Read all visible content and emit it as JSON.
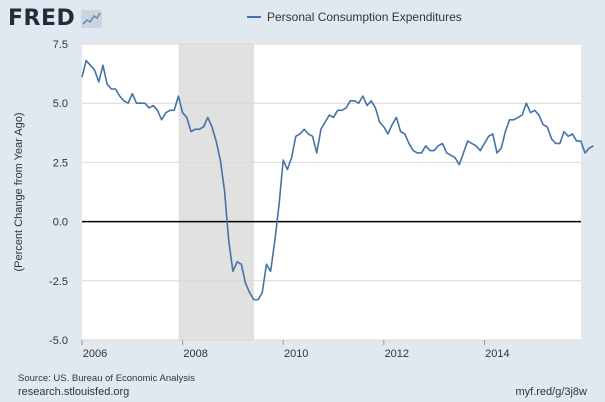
{
  "header": {
    "logo_text": "FRED",
    "logo_icon": "fred-chart-icon"
  },
  "chart_data": {
    "type": "line",
    "title": "",
    "legend": [
      "Personal Consumption Expenditures"
    ],
    "legend_position": "top-center",
    "ylabel": "(Percent Change from Year Ago)",
    "xlabel": "",
    "ylim": [
      -5.0,
      7.5
    ],
    "xlim": [
      2006.0,
      2015.92
    ],
    "yticks": [
      "-5.0",
      "-2.5",
      "0.0",
      "2.5",
      "5.0",
      "7.5"
    ],
    "ytick_values": [
      -5.0,
      -2.5,
      0.0,
      2.5,
      5.0,
      7.5
    ],
    "xticks": [
      "2006",
      "2008",
      "2010",
      "2012",
      "2014"
    ],
    "xtick_values": [
      2006,
      2008,
      2010,
      2012,
      2014
    ],
    "grid": true,
    "zero_line": true,
    "recession_shading": {
      "start": 2007.92,
      "end": 2009.42
    },
    "series": [
      {
        "name": "Personal Consumption Expenditures",
        "color": "#4572a7",
        "values": [
          6.1,
          6.8,
          6.6,
          6.4,
          5.9,
          6.6,
          5.8,
          5.6,
          5.6,
          5.3,
          5.1,
          5.0,
          5.4,
          5.0,
          5.0,
          5.0,
          4.8,
          4.9,
          4.7,
          4.3,
          4.6,
          4.7,
          4.7,
          5.3,
          4.6,
          4.4,
          3.8,
          3.9,
          3.9,
          4.0,
          4.4,
          4.0,
          3.4,
          2.6,
          1.3,
          -0.8,
          -2.1,
          -1.7,
          -1.8,
          -2.6,
          -3.0,
          -3.3,
          -3.3,
          -3.0,
          -1.8,
          -2.1,
          -0.8,
          0.7,
          2.6,
          2.2,
          2.7,
          3.6,
          3.7,
          3.9,
          3.7,
          3.6,
          2.9,
          3.9,
          4.2,
          4.5,
          4.4,
          4.7,
          4.7,
          4.8,
          5.1,
          5.1,
          5.0,
          5.3,
          4.9,
          5.1,
          4.8,
          4.2,
          4.0,
          3.7,
          4.1,
          4.4,
          3.8,
          3.7,
          3.3,
          3.0,
          2.9,
          2.9,
          3.2,
          3.0,
          3.0,
          3.2,
          3.3,
          2.9,
          2.8,
          2.7,
          2.4,
          2.9,
          3.4,
          3.3,
          3.2,
          3.0,
          3.3,
          3.6,
          3.7,
          2.9,
          3.1,
          3.8,
          4.3,
          4.3,
          4.4,
          4.5,
          5.0,
          4.6,
          4.7,
          4.5,
          4.1,
          4.0,
          3.5,
          3.3,
          3.3,
          3.8,
          3.6,
          3.7,
          3.4,
          3.4,
          2.9,
          3.1,
          3.2
        ]
      }
    ]
  },
  "footer": {
    "source": "Source: US. Bureau of Economic Analysis",
    "site": "research.stlouisfed.org",
    "shortlink": "myf.red/g/3j8w"
  }
}
